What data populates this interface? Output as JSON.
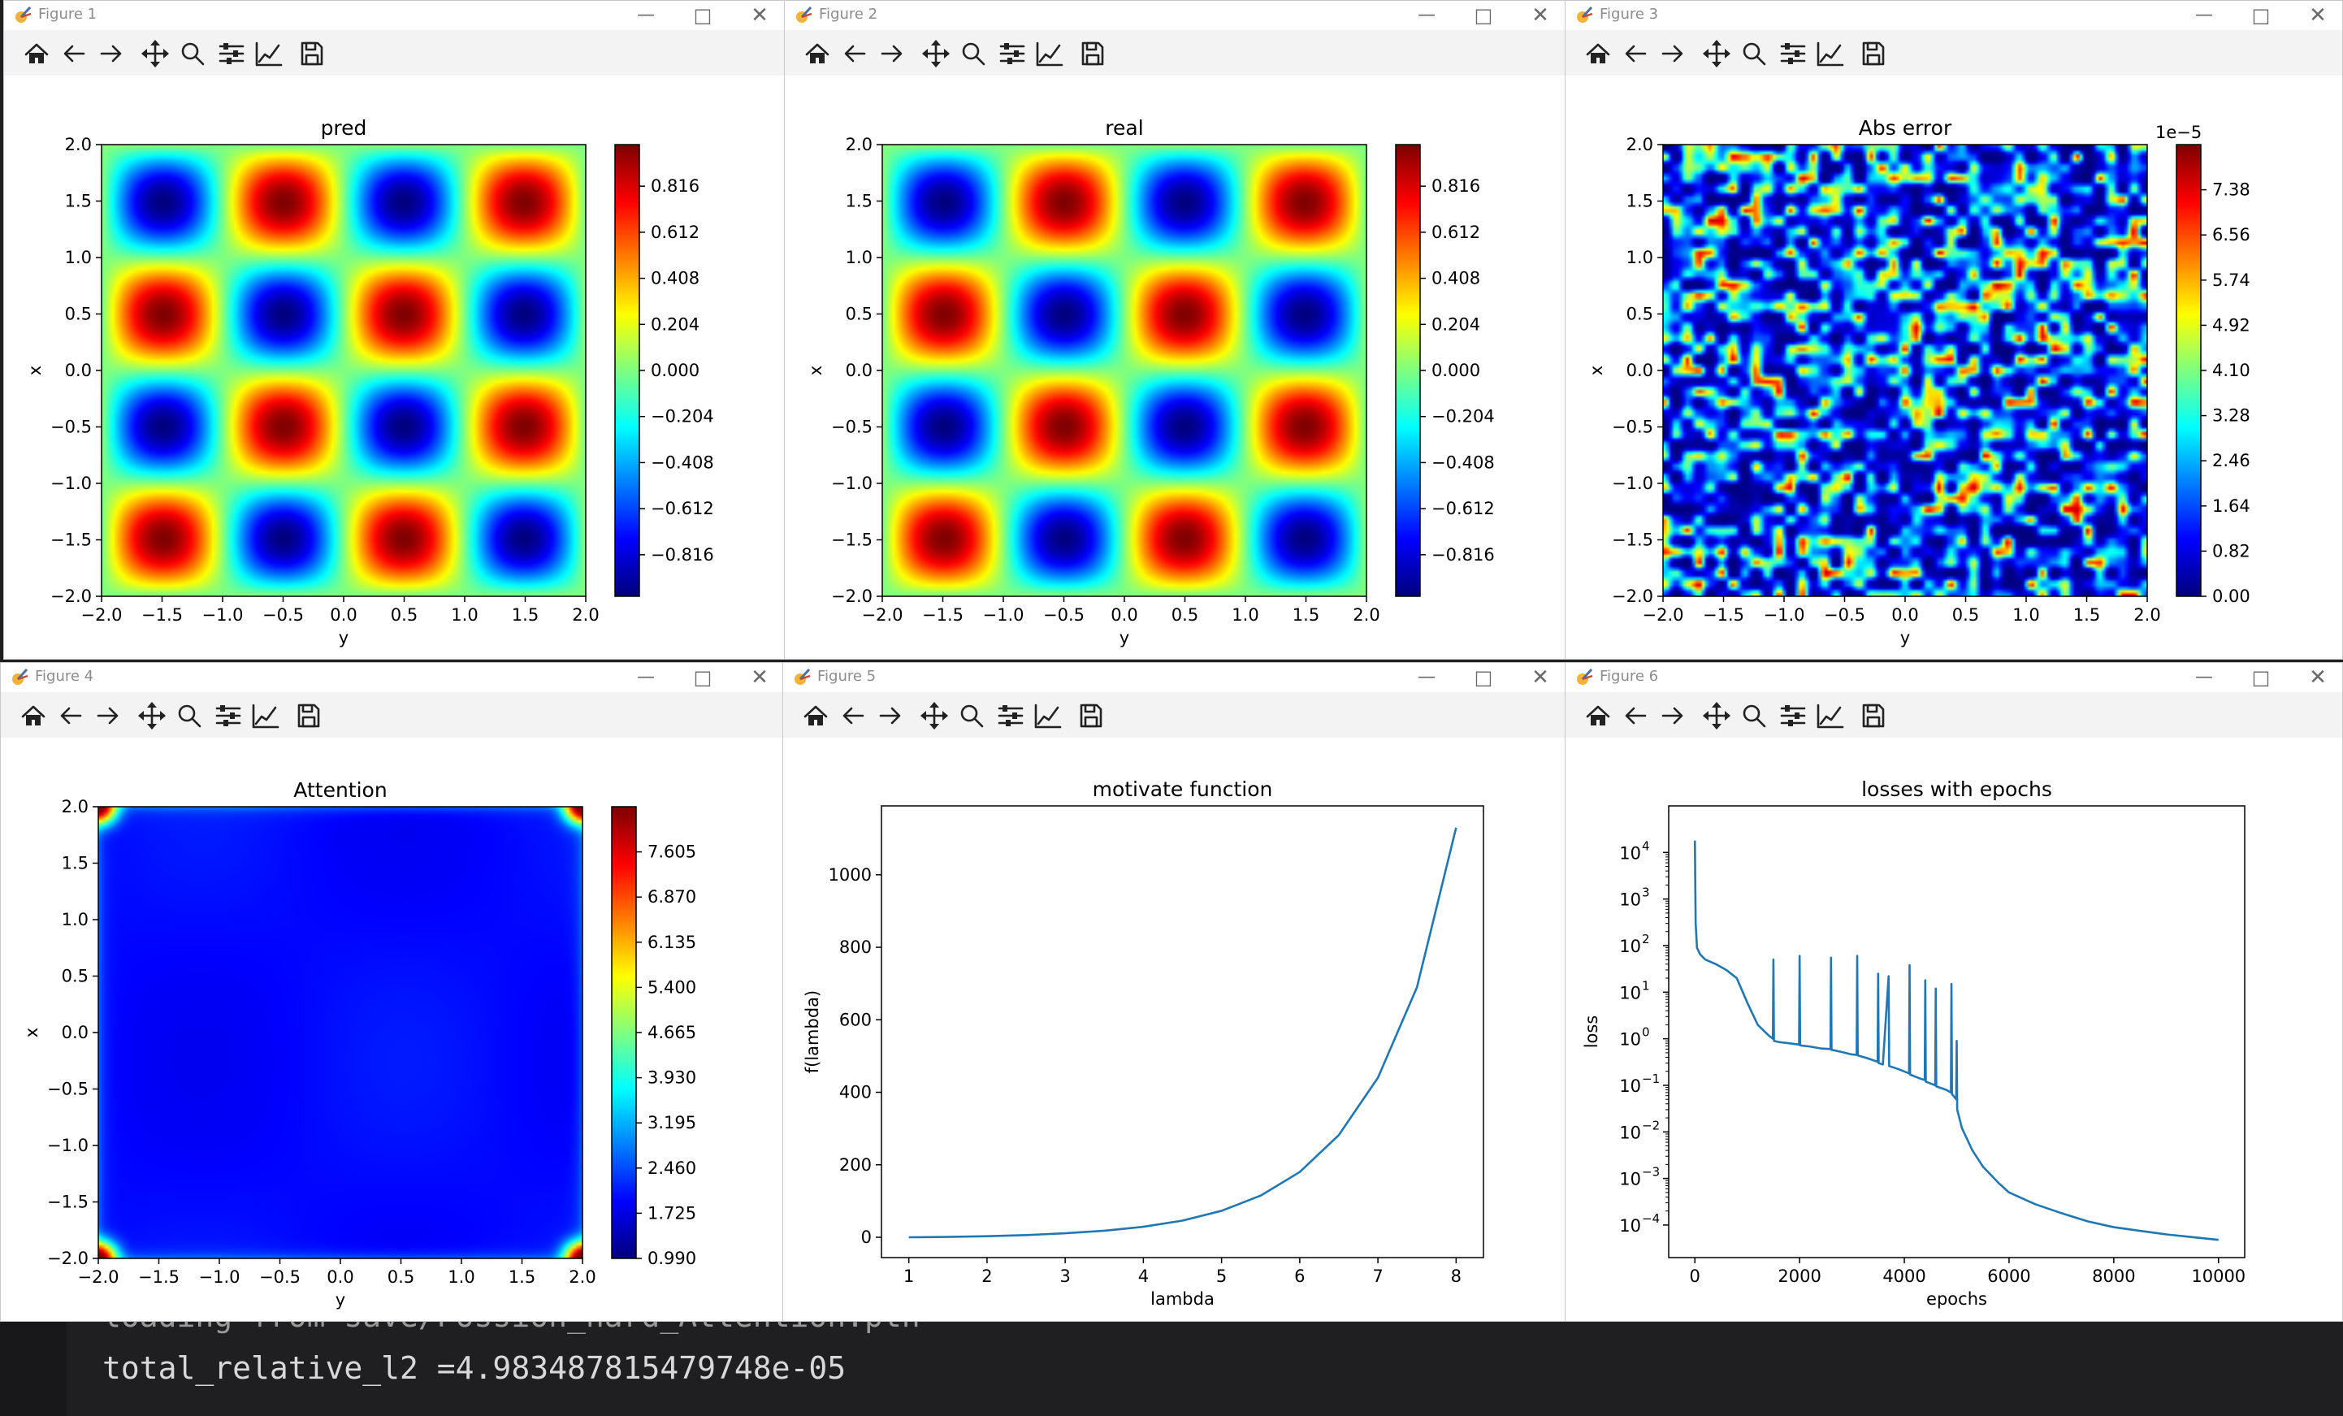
{
  "terminal": {
    "lines": [
      "loading from save/Possion_hard_Attention.pth",
      "total_relative_l2 =4.983487815479748e-05"
    ]
  },
  "toolbar_icons": [
    "home-icon",
    "back-arrow-icon",
    "forward-arrow-icon",
    "pan-icon",
    "zoom-icon",
    "subplots-config-icon",
    "edit-axis-icon",
    "save-icon"
  ],
  "colors": {
    "jet": [
      "#00007f",
      "#0000ff",
      "#007fff",
      "#00ffff",
      "#7fff7f",
      "#ffff00",
      "#ff7f00",
      "#ff0000",
      "#7f0000"
    ],
    "line": "#1f77b4"
  },
  "windows": [
    {
      "title": "Figure 1",
      "chart_data": {
        "type": "heatmap",
        "title": "pred",
        "xlabel": "y",
        "ylabel": "x",
        "xlim": [
          -2.0,
          2.0
        ],
        "ylim": [
          -2.0,
          2.0
        ],
        "field": "sin(pi*x)*sin(pi*y)",
        "xticks": [
          "−2.0",
          "−1.5",
          "−1.0",
          "−0.5",
          "0.0",
          "0.5",
          "1.0",
          "1.5",
          "2.0"
        ],
        "yticks": [
          "−2.0",
          "−1.5",
          "−1.0",
          "−0.5",
          "0.0",
          "0.5",
          "1.0",
          "1.5",
          "2.0"
        ],
        "colorbar_ticks": [
          "−0.816",
          "−0.612",
          "−0.408",
          "−0.204",
          "0.000",
          "0.204",
          "0.408",
          "0.612",
          "0.816"
        ],
        "colorbar_range": [
          -1.0,
          1.0
        ],
        "colorbar_tick_values": [
          -0.816,
          -0.612,
          -0.408,
          -0.204,
          0.0,
          0.204,
          0.408,
          0.612,
          0.816
        ],
        "colorbar_exponent": ""
      }
    },
    {
      "title": "Figure 2",
      "chart_data": {
        "type": "heatmap",
        "title": "real",
        "xlabel": "y",
        "ylabel": "x",
        "xlim": [
          -2.0,
          2.0
        ],
        "ylim": [
          -2.0,
          2.0
        ],
        "field": "sin(pi*x)*sin(pi*y)",
        "xticks": [
          "−2.0",
          "−1.5",
          "−1.0",
          "−0.5",
          "0.0",
          "0.5",
          "1.0",
          "1.5",
          "2.0"
        ],
        "yticks": [
          "−2.0",
          "−1.5",
          "−1.0",
          "−0.5",
          "0.0",
          "0.5",
          "1.0",
          "1.5",
          "2.0"
        ],
        "colorbar_ticks": [
          "−0.816",
          "−0.612",
          "−0.408",
          "−0.204",
          "0.000",
          "0.204",
          "0.408",
          "0.612",
          "0.816"
        ],
        "colorbar_range": [
          -1.0,
          1.0
        ],
        "colorbar_tick_values": [
          -0.816,
          -0.612,
          -0.408,
          -0.204,
          0.0,
          0.204,
          0.408,
          0.612,
          0.816
        ],
        "colorbar_exponent": ""
      }
    },
    {
      "title": "Figure 3",
      "chart_data": {
        "type": "heatmap",
        "title": "Abs error",
        "xlabel": "y",
        "ylabel": "x",
        "xlim": [
          -2.0,
          2.0
        ],
        "ylim": [
          -2.0,
          2.0
        ],
        "field": "noise",
        "xticks": [
          "−2.0",
          "−1.5",
          "−1.0",
          "−0.5",
          "0.0",
          "0.5",
          "1.0",
          "1.5",
          "2.0"
        ],
        "yticks": [
          "−2.0",
          "−1.5",
          "−1.0",
          "−0.5",
          "0.0",
          "0.5",
          "1.0",
          "1.5",
          "2.0"
        ],
        "colorbar_ticks": [
          "0.00",
          "0.82",
          "1.64",
          "2.46",
          "3.28",
          "4.10",
          "4.92",
          "5.74",
          "6.56",
          "7.38"
        ],
        "colorbar_range": [
          0.0,
          8.2
        ],
        "colorbar_tick_values": [
          0.0,
          0.82,
          1.64,
          2.46,
          3.28,
          4.1,
          4.92,
          5.74,
          6.56,
          7.38
        ],
        "colorbar_exponent": "1e−5"
      }
    },
    {
      "title": "Figure 4",
      "chart_data": {
        "type": "heatmap",
        "title": "Attention",
        "xlabel": "y",
        "ylabel": "x",
        "xlim": [
          -2.0,
          2.0
        ],
        "ylim": [
          -2.0,
          2.0
        ],
        "field": "corners",
        "xticks": [
          "−2.0",
          "−1.5",
          "−1.0",
          "−0.5",
          "0.0",
          "0.5",
          "1.0",
          "1.5",
          "2.0"
        ],
        "yticks": [
          "−2.0",
          "−1.5",
          "−1.0",
          "−0.5",
          "0.0",
          "0.5",
          "1.0",
          "1.5",
          "2.0"
        ],
        "colorbar_ticks": [
          "0.990",
          "1.725",
          "2.460",
          "3.195",
          "3.930",
          "4.665",
          "5.400",
          "6.135",
          "6.870",
          "7.605"
        ],
        "colorbar_range": [
          0.99,
          8.34
        ],
        "colorbar_tick_values": [
          0.99,
          1.725,
          2.46,
          3.195,
          3.93,
          4.665,
          5.4,
          6.135,
          6.87,
          7.605
        ],
        "colorbar_exponent": ""
      }
    },
    {
      "title": "Figure 5",
      "chart_data": {
        "type": "line",
        "title": "motivate function",
        "xlabel": "lambda",
        "ylabel": "f(lambda)",
        "xlim": [
          0.65,
          8.35
        ],
        "ylim": [
          -56,
          1190
        ],
        "x": [
          1,
          1.5,
          2,
          2.5,
          3,
          3.5,
          4,
          4.5,
          5,
          5.5,
          6,
          6.5,
          7,
          7.5,
          8
        ],
        "y": [
          0,
          1,
          3,
          6,
          11,
          18,
          29,
          46,
          73,
          115,
          180,
          282,
          440,
          690,
          1130
        ],
        "xticks": [
          "1",
          "2",
          "3",
          "4",
          "5",
          "6",
          "7",
          "8"
        ],
        "xtick_values": [
          1,
          2,
          3,
          4,
          5,
          6,
          7,
          8
        ],
        "yticks": [
          "0",
          "200",
          "400",
          "600",
          "800",
          "1000"
        ],
        "ytick_values": [
          0,
          200,
          400,
          600,
          800,
          1000
        ]
      }
    },
    {
      "title": "Figure 6",
      "chart_data": {
        "type": "line",
        "title": "losses with epochs",
        "xlabel": "epochs",
        "ylabel": "loss",
        "yscale": "log",
        "xlim": [
          -500,
          10500
        ],
        "ylim": [
          2e-05,
          100000
        ],
        "x": [
          0,
          15,
          40,
          100,
          200,
          400,
          600,
          800,
          1000,
          1200,
          1400,
          1490,
          1500,
          1510,
          1600,
          1800,
          1990,
          2000,
          2010,
          2200,
          2400,
          2590,
          2600,
          2610,
          2800,
          3000,
          3090,
          3100,
          3110,
          3300,
          3490,
          3500,
          3510,
          3590,
          3700,
          3710,
          3900,
          4090,
          4100,
          4110,
          4300,
          4390,
          4400,
          4410,
          4590,
          4600,
          4610,
          4800,
          4890,
          4900,
          4910,
          4990,
          5000,
          5010,
          5100,
          5300,
          5500,
          5800,
          6000,
          6500,
          7000,
          7500,
          8000,
          8500,
          9000,
          9500,
          10000
        ],
        "y": [
          18000,
          300,
          90,
          65,
          50,
          40,
          30,
          20,
          6,
          2,
          1.2,
          1,
          50,
          0.9,
          0.85,
          0.8,
          0.75,
          60,
          0.72,
          0.68,
          0.62,
          0.6,
          55,
          0.58,
          0.52,
          0.46,
          0.45,
          60,
          0.44,
          0.38,
          0.32,
          25,
          0.3,
          0.28,
          22,
          0.26,
          0.22,
          0.18,
          38,
          0.17,
          0.14,
          0.13,
          18,
          0.12,
          0.1,
          12,
          0.095,
          0.08,
          0.07,
          15,
          0.065,
          0.05,
          0.9,
          0.03,
          0.012,
          0.004,
          0.0018,
          0.0008,
          0.0005,
          0.00028,
          0.00018,
          0.00012,
          9e-05,
          7.5e-05,
          6.3e-05,
          5.5e-05,
          4.8e-05
        ],
        "xticks": [
          "0",
          "2000",
          "4000",
          "6000",
          "8000",
          "10000"
        ],
        "xtick_values": [
          0,
          2000,
          4000,
          6000,
          8000,
          10000
        ],
        "yticks_exp": [
          "−4",
          "−3",
          "−2",
          "−1",
          "0",
          "1",
          "2",
          "3",
          "4"
        ],
        "ytick_values": [
          0.0001,
          0.001,
          0.01,
          0.1,
          1,
          10,
          100,
          1000,
          10000
        ]
      }
    }
  ]
}
